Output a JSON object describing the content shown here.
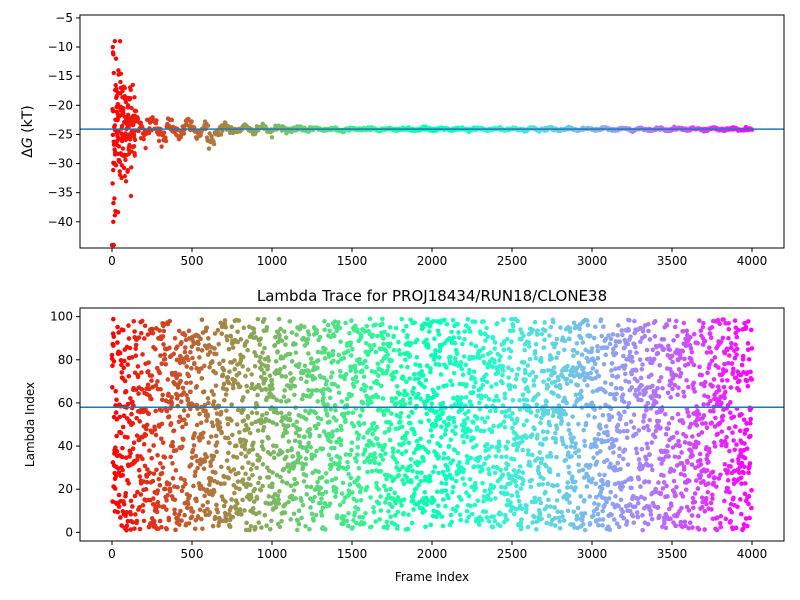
{
  "chart_data": [
    {
      "type": "scatter",
      "title": "",
      "xlabel": "",
      "ylabel": "ΔG (kT)",
      "ylabel_parts": {
        "delta": "Δ",
        "symbol": "G",
        "unit": " (kT)"
      },
      "xlim": [
        -200,
        4200
      ],
      "ylim": [
        -44.5,
        -4.5
      ],
      "xticks": [
        0,
        500,
        1000,
        1500,
        2000,
        2500,
        3000,
        3500,
        4000
      ],
      "yticks": [
        -40,
        -35,
        -30,
        -25,
        -20,
        -15,
        -10,
        -5
      ],
      "hline": -24.1,
      "colormap": "rainbow",
      "series": [
        {
          "x_range": [
            0,
            4000
          ],
          "converged_value": -24.1,
          "note_points": [
            [
              5,
              -10
            ],
            [
              18,
              -9
            ],
            [
              10,
              -44
            ],
            [
              8,
              -40
            ],
            [
              15,
              -36
            ],
            [
              25,
              -12
            ],
            [
              40,
              -14
            ],
            [
              55,
              -17
            ],
            [
              12,
              -30
            ],
            [
              20,
              -28
            ],
            [
              35,
              -26
            ],
            [
              60,
              -24
            ],
            [
              80,
              -22
            ],
            [
              100,
              -20
            ],
            [
              110,
              -19
            ],
            [
              130,
              -16.5
            ],
            [
              150,
              -21
            ],
            [
              180,
              -23
            ],
            [
              220,
              -22.5
            ],
            [
              300,
              -25
            ],
            [
              400,
              -24
            ],
            [
              600,
              -23.5
            ],
            [
              620,
              -26
            ],
            [
              800,
              -24.5
            ],
            [
              1000,
              -25.5
            ],
            [
              1200,
              -24
            ],
            [
              1600,
              -23.8
            ],
            [
              2000,
              -24
            ],
            [
              3000,
              -24.2
            ],
            [
              4000,
              -24.2
            ]
          ]
        }
      ]
    },
    {
      "type": "scatter",
      "title": "Lambda Trace for PROJ18434/RUN18/CLONE38",
      "xlabel": "Frame Index",
      "ylabel": "Lambda Index",
      "xlim": [
        -200,
        4200
      ],
      "ylim": [
        -4,
        104
      ],
      "xticks": [
        0,
        500,
        1000,
        1500,
        2000,
        2500,
        3000,
        3500,
        4000
      ],
      "yticks": [
        0,
        20,
        40,
        60,
        80,
        100
      ],
      "hline": 58,
      "colormap": "rainbow",
      "series": [
        {
          "x_range": [
            0,
            4000
          ],
          "y_range": [
            1,
            99
          ],
          "n_points": 4000
        }
      ]
    }
  ],
  "colors": {
    "hline": "#1f77b4",
    "axes": "#000000"
  }
}
